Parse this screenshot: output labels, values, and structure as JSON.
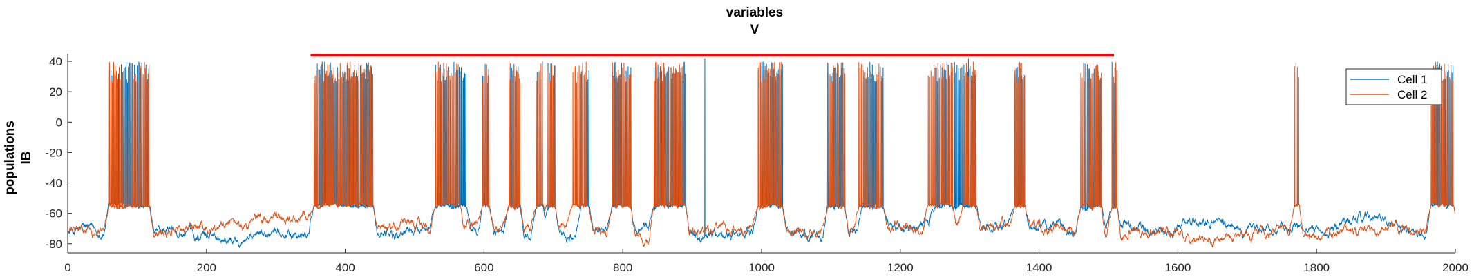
{
  "chart_data": {
    "type": "line",
    "title_lines": [
      "variables",
      "V"
    ],
    "ylabel_lines": [
      "populations",
      "IB"
    ],
    "xlabel": "",
    "xlim": [
      0,
      2000
    ],
    "ylim": [
      -86,
      45
    ],
    "x_ticks": [
      0,
      200,
      400,
      600,
      800,
      1000,
      1200,
      1400,
      1600,
      1800,
      2000
    ],
    "y_ticks": [
      -80,
      -60,
      -40,
      -20,
      0,
      20,
      40
    ],
    "grid": false,
    "legend_position": "top-right",
    "series": [
      {
        "name": "Cell 1",
        "color": "#0072BD",
        "baseline_mv": -72,
        "bursts": [
          [
            60,
            118
          ],
          [
            355,
            440
          ],
          [
            530,
            575
          ],
          [
            598,
            608
          ],
          [
            636,
            652
          ],
          [
            675,
            685
          ],
          [
            692,
            702
          ],
          [
            740,
            752
          ],
          [
            785,
            812
          ],
          [
            845,
            890
          ],
          [
            995,
            1030
          ],
          [
            1095,
            1120
          ],
          [
            1145,
            1175
          ],
          [
            1250,
            1275
          ],
          [
            1278,
            1310
          ],
          [
            1365,
            1380
          ],
          [
            1460,
            1490
          ],
          [
            1505,
            1512
          ],
          [
            1965,
            1998
          ]
        ],
        "extra_spikes": [
          918,
          1290,
          1298
        ]
      },
      {
        "name": "Cell 2",
        "color": "#D95319",
        "baseline_mv": -72,
        "bursts": [
          [
            60,
            118
          ],
          [
            355,
            440
          ],
          [
            530,
            565
          ],
          [
            598,
            608
          ],
          [
            636,
            652
          ],
          [
            675,
            685
          ],
          [
            692,
            702
          ],
          [
            728,
            750
          ],
          [
            785,
            812
          ],
          [
            845,
            890
          ],
          [
            995,
            1030
          ],
          [
            1095,
            1120
          ],
          [
            1140,
            1175
          ],
          [
            1240,
            1275
          ],
          [
            1290,
            1310
          ],
          [
            1365,
            1380
          ],
          [
            1460,
            1490
          ],
          [
            1505,
            1512
          ],
          [
            1768,
            1775
          ],
          [
            1965,
            1998
          ]
        ],
        "extra_spikes": []
      }
    ],
    "event_line": {
      "x_start": 350,
      "x_end": 1508,
      "y": 44,
      "color": "#FF0000"
    }
  }
}
